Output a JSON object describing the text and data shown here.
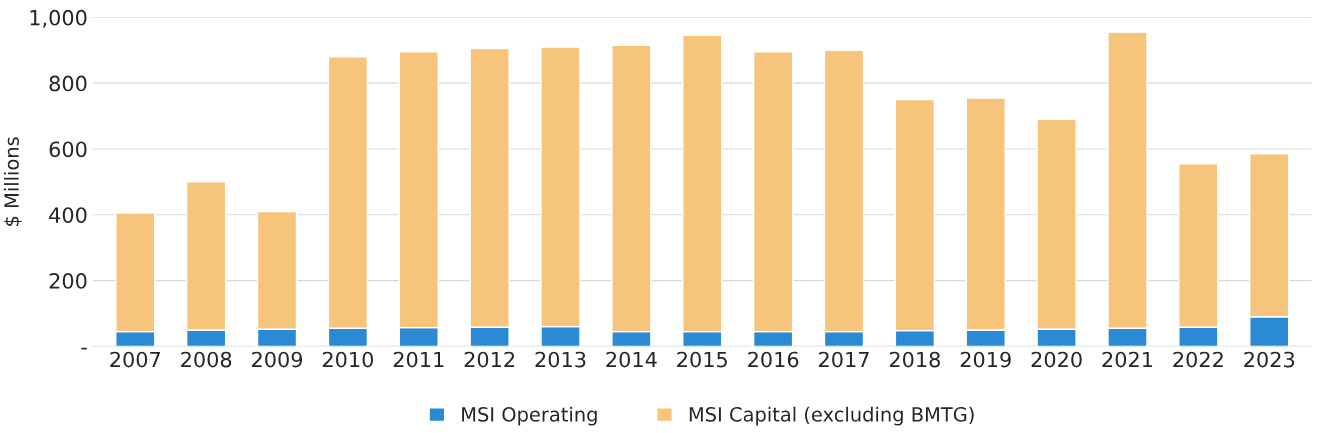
{
  "chart_data": {
    "type": "bar",
    "stacked": true,
    "ylabel": "$ Millions",
    "categories": [
      "2007",
      "2008",
      "2009",
      "2010",
      "2011",
      "2012",
      "2013",
      "2014",
      "2015",
      "2016",
      "2017",
      "2018",
      "2019",
      "2020",
      "2021",
      "2022",
      "2023"
    ],
    "series": [
      {
        "name": "MSI Operating",
        "color": "#2a8ad4",
        "values": [
          45,
          50,
          52,
          55,
          57,
          58,
          60,
          45,
          45,
          45,
          45,
          48,
          50,
          52,
          55,
          58,
          90
        ]
      },
      {
        "name": "MSI Capital (excluding BMTG)",
        "color": "#f7c47c",
        "values": [
          360,
          450,
          358,
          825,
          838,
          847,
          850,
          870,
          900,
          850,
          855,
          702,
          705,
          638,
          900,
          497,
          495
        ]
      }
    ],
    "ylim": [
      0,
      1000
    ],
    "yticks": [
      {
        "value": 0,
        "label": "-"
      },
      200,
      400,
      600,
      800,
      {
        "value": 1000,
        "label": "1,000"
      }
    ],
    "grid": "y",
    "legend": "bottom"
  }
}
